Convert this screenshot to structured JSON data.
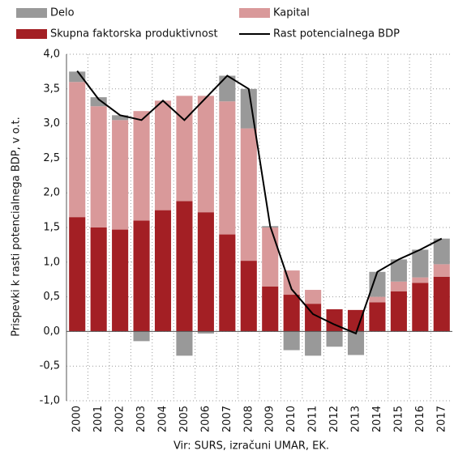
{
  "chart_data": {
    "type": "bar",
    "stacked": true,
    "y_label": "Prispevki k rasti potencialnega BDP, v o.t.",
    "source": "Vir: SURS, izračuni UMAR, EK.",
    "categories": [
      "2000",
      "2001",
      "2002",
      "2003",
      "2004",
      "2005",
      "2006",
      "2007",
      "2008",
      "2009",
      "2010",
      "2011",
      "2012",
      "2013",
      "2014",
      "2015",
      "2016",
      "2017"
    ],
    "series": [
      {
        "name": "Skupna faktorska produktivnost",
        "color": "#a31f24",
        "type": "bar",
        "values": [
          1.65,
          1.5,
          1.47,
          1.6,
          1.75,
          1.88,
          1.72,
          1.4,
          1.02,
          0.65,
          0.53,
          0.4,
          0.32,
          0.31,
          0.42,
          0.58,
          0.7,
          0.79
        ]
      },
      {
        "name": "Kapital",
        "color": "#d9999a",
        "type": "bar",
        "values": [
          1.95,
          1.75,
          1.58,
          1.58,
          1.58,
          1.52,
          1.68,
          1.92,
          1.91,
          0.85,
          0.35,
          0.2,
          0,
          0,
          0.08,
          0.14,
          0.08,
          0.18
        ]
      },
      {
        "name": "Delo",
        "color": "#999999",
        "type": "bar",
        "values": [
          0.15,
          0.13,
          0.07,
          -0.14,
          0,
          -0.35,
          -0.03,
          0.37,
          0.57,
          0.02,
          -0.27,
          -0.35,
          -0.22,
          -0.34,
          0.36,
          0.32,
          0.4,
          0.37
        ]
      },
      {
        "name": "Rast potencialnega BDP",
        "color": "#000000",
        "type": "line",
        "values": [
          3.76,
          3.35,
          3.12,
          3.05,
          3.33,
          3.05,
          3.37,
          3.69,
          3.5,
          1.52,
          0.61,
          0.25,
          0.1,
          -0.03,
          0.86,
          1.04,
          1.18,
          1.34
        ]
      }
    ],
    "ylim": [
      -1,
      4
    ],
    "yticks": [
      {
        "value": -1,
        "label": "-1,0"
      },
      {
        "value": -0.5,
        "label": "-0,5"
      },
      {
        "value": 0,
        "label": "0,0"
      },
      {
        "value": 0.5,
        "label": "0,5"
      },
      {
        "value": 1,
        "label": "1,0"
      },
      {
        "value": 1.5,
        "label": "1,5"
      },
      {
        "value": 2,
        "label": "2,0"
      },
      {
        "value": 2.5,
        "label": "2,5"
      },
      {
        "value": 3,
        "label": "3,0"
      },
      {
        "value": 3.5,
        "label": "3,5"
      },
      {
        "value": 4,
        "label": "4,0"
      }
    ],
    "grid": true
  }
}
